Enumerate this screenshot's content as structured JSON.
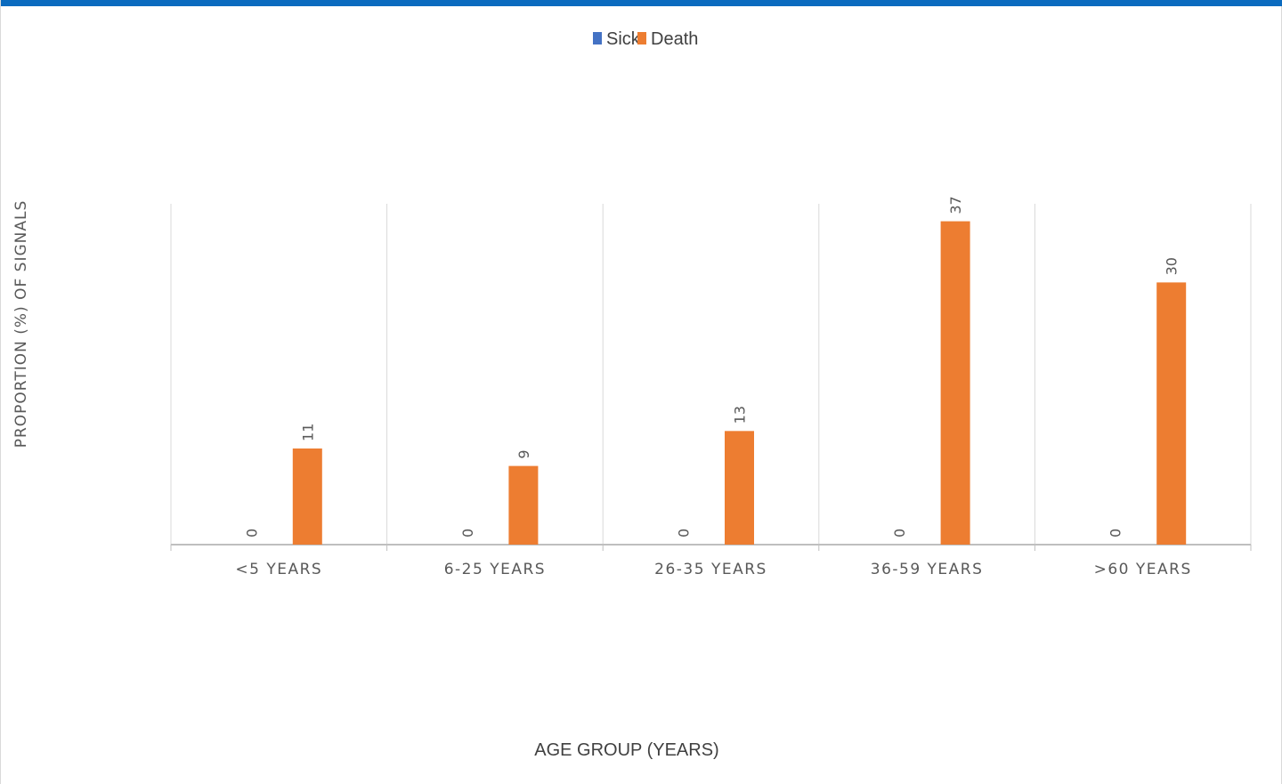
{
  "chart_data": {
    "type": "bar",
    "categories": [
      "<5 YEARS",
      "6-25 YEARS",
      "26-35 YEARS",
      "36-59 YEARS",
      ">60 YEARS"
    ],
    "series": [
      {
        "name": "Sick",
        "color": "#4472c4",
        "values": [
          0,
          0,
          0,
          0,
          0
        ]
      },
      {
        "name": "Death",
        "color": "#ed7d31",
        "values": [
          11,
          9,
          13,
          37,
          30
        ]
      }
    ],
    "xlabel": "AGE GROUP (YEARS)",
    "ylabel": "PROPORTION (%) OF SIGNALS",
    "ylim": [
      0,
      39
    ],
    "legend_position": "top",
    "grid": "vertical category separators"
  }
}
